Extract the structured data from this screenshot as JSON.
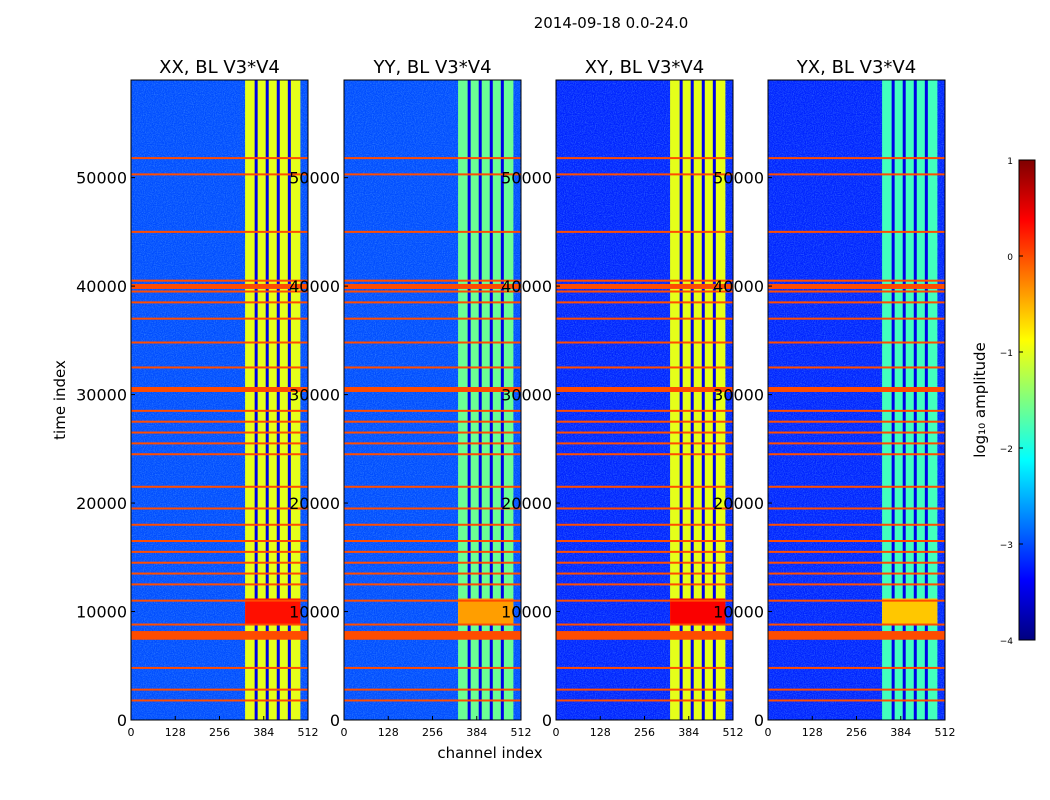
{
  "chart_data": {
    "type": "heatmap",
    "title": "2014-09-18 0.0-24.0",
    "xlabel": "channel index",
    "ylabel": "time index",
    "xlim": [
      0,
      512
    ],
    "ylim": [
      0,
      59000
    ],
    "xticks": [
      0,
      128,
      256,
      384,
      512
    ],
    "yticks": [
      0,
      10000,
      20000,
      30000,
      40000,
      50000
    ],
    "xtick_labels": [
      "0",
      "128",
      "256",
      "384",
      "512"
    ],
    "ytick_labels": [
      "0",
      "10000",
      "20000",
      "30000",
      "40000",
      "50000"
    ],
    "colorbar": {
      "label": "log₁₀ amplitude",
      "range": [
        -4,
        1
      ],
      "ticks": [
        1,
        0,
        -1,
        -2,
        -3,
        -4
      ],
      "tick_labels": [
        "1",
        "0",
        "−1",
        "−2",
        "−3",
        "−4"
      ],
      "colormap": "jet"
    },
    "panels": [
      {
        "name": "XX",
        "title": "XX, BL V3*V4",
        "background_log_amp": -3.0,
        "signal_log_amp": -1.0,
        "peak_log_amp": 0.3
      },
      {
        "name": "YY",
        "title": "YY, BL V3*V4",
        "background_log_amp": -3.0,
        "signal_log_amp": -1.6,
        "peak_log_amp": -0.4
      },
      {
        "name": "XY",
        "title": "XY, BL V3*V4",
        "background_log_amp": -3.2,
        "signal_log_amp": -1.0,
        "peak_log_amp": 0.4
      },
      {
        "name": "YX",
        "title": "YX, BL V3*V4",
        "background_log_amp": -3.2,
        "signal_log_amp": -1.8,
        "peak_log_amp": -0.6
      }
    ],
    "signal_channel_range": [
      330,
      490
    ],
    "flagged_time_rows": [
      1800,
      2800,
      4800,
      7800,
      8800,
      11000,
      12500,
      13500,
      14500,
      15500,
      16500,
      18000,
      19500,
      21500,
      24500,
      25500,
      26500,
      27500,
      28500,
      30500,
      32500,
      34800,
      37000,
      38500,
      39500,
      40500,
      45000,
      50300,
      51800
    ],
    "flagged_log_amp": 0.0
  }
}
